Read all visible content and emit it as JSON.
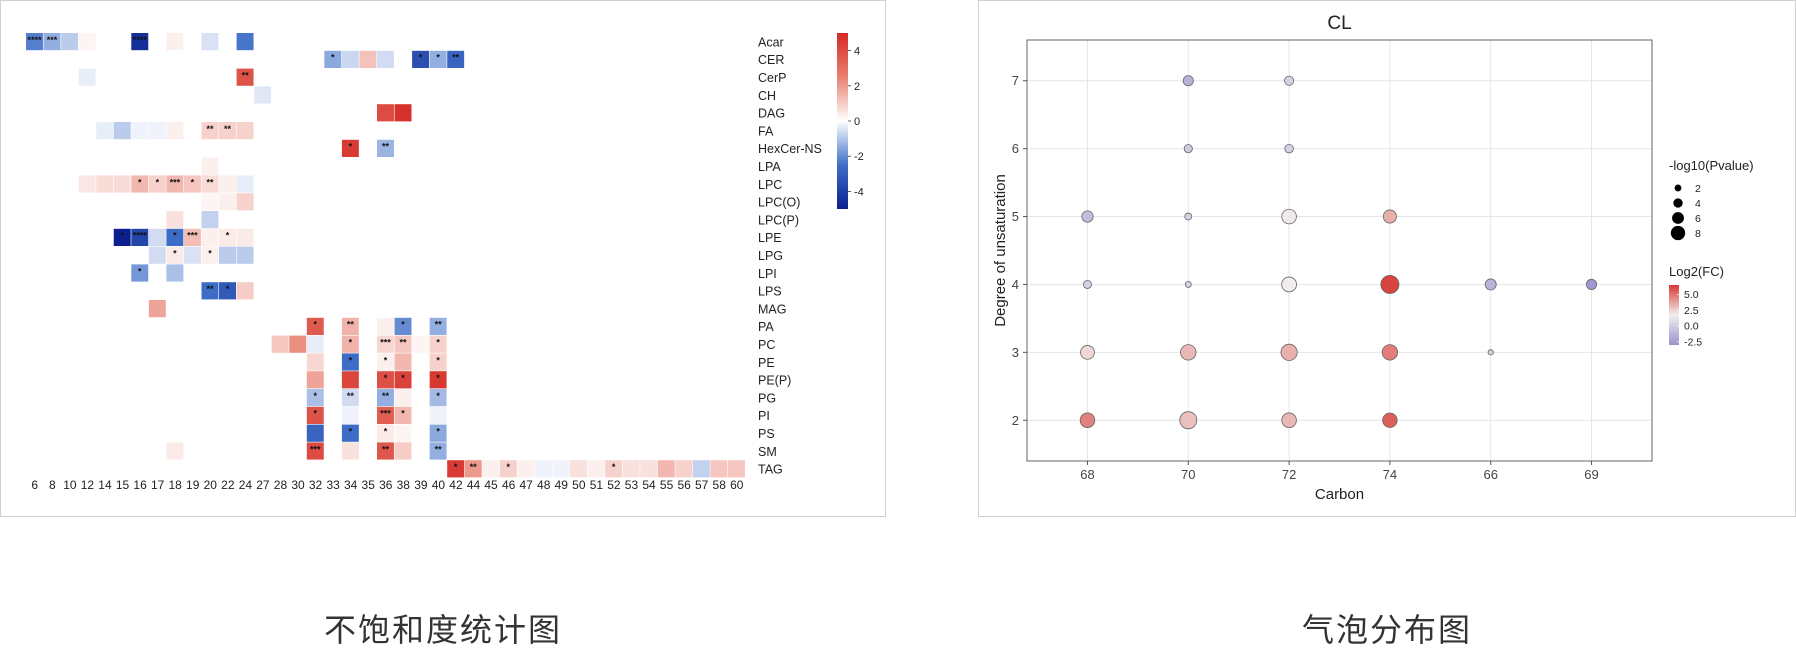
{
  "captions": {
    "left": "不饱和度统计图",
    "right": "气泡分布图"
  },
  "chart_data": [
    {
      "type": "heatmap",
      "columns": [
        "6",
        "8",
        "10",
        "12",
        "14",
        "15",
        "16",
        "17",
        "18",
        "19",
        "20",
        "22",
        "24",
        "27",
        "28",
        "30",
        "32",
        "33",
        "34",
        "35",
        "36",
        "38",
        "39",
        "40",
        "42",
        "44",
        "45",
        "46",
        "47",
        "48",
        "49",
        "50",
        "51",
        "52",
        "53",
        "54",
        "55",
        "56",
        "57",
        "58",
        "60"
      ],
      "rows": [
        "Acar",
        "CER",
        "CerP",
        "CH",
        "DAG",
        "FA",
        "HexCer-NS",
        "LPA",
        "LPC",
        "LPC(O)",
        "LPC(P)",
        "LPE",
        "LPG",
        "LPI",
        "LPS",
        "MAG",
        "PA",
        "PC",
        "PE",
        "PE(P)",
        "PG",
        "PI",
        "PS",
        "SM",
        "TAG"
      ],
      "colorbar": {
        "ticks": [
          4,
          2,
          0,
          -2,
          -4
        ],
        "range": [
          -5,
          5
        ],
        "colors": [
          "#0b1f8f",
          "#3f6fc8",
          "#ffffff",
          "#e88070",
          "#d42a24"
        ]
      },
      "cells": [
        {
          "row": "Acar",
          "col": "6",
          "value": -2.2,
          "label": "****"
        },
        {
          "row": "Acar",
          "col": "8",
          "value": -1.4,
          "label": "***"
        },
        {
          "row": "Acar",
          "col": "10",
          "value": -0.9,
          "label": ""
        },
        {
          "row": "Acar",
          "col": "12",
          "value": 0.2,
          "label": ""
        },
        {
          "row": "Acar",
          "col": "16",
          "value": -4.5,
          "label": "****"
        },
        {
          "row": "Acar",
          "col": "18",
          "value": 0.3,
          "label": ""
        },
        {
          "row": "Acar",
          "col": "20",
          "value": -0.5,
          "label": ""
        },
        {
          "row": "Acar",
          "col": "24",
          "value": -2.4,
          "label": ""
        },
        {
          "row": "CER",
          "col": "33",
          "value": -1.5,
          "label": "*"
        },
        {
          "row": "CER",
          "col": "34",
          "value": -0.7,
          "label": ""
        },
        {
          "row": "CER",
          "col": "35",
          "value": 1.2,
          "label": ""
        },
        {
          "row": "CER",
          "col": "36",
          "value": -0.6,
          "label": ""
        },
        {
          "row": "CER",
          "col": "39",
          "value": -3.5,
          "label": "*"
        },
        {
          "row": "CER",
          "col": "40",
          "value": -1.4,
          "label": "*"
        },
        {
          "row": "CER",
          "col": "42",
          "value": -2.8,
          "label": "**"
        },
        {
          "row": "CerP",
          "col": "12",
          "value": -0.3,
          "label": ""
        },
        {
          "row": "CerP",
          "col": "24",
          "value": 3.8,
          "label": "**"
        },
        {
          "row": "CH",
          "col": "27",
          "value": -0.4,
          "label": ""
        },
        {
          "row": "DAG",
          "col": "36",
          "value": 4.0,
          "label": ""
        },
        {
          "row": "DAG",
          "col": "38",
          "value": 4.8,
          "label": ""
        },
        {
          "row": "FA",
          "col": "14",
          "value": -0.3,
          "label": ""
        },
        {
          "row": "FA",
          "col": "15",
          "value": -0.9,
          "label": ""
        },
        {
          "row": "FA",
          "col": "16",
          "value": -0.2,
          "label": ""
        },
        {
          "row": "FA",
          "col": "17",
          "value": -0.2,
          "label": ""
        },
        {
          "row": "FA",
          "col": "18",
          "value": 0.3,
          "label": ""
        },
        {
          "row": "FA",
          "col": "20",
          "value": 0.9,
          "label": "**"
        },
        {
          "row": "FA",
          "col": "22",
          "value": 0.9,
          "label": "**"
        },
        {
          "row": "FA",
          "col": "24",
          "value": 0.9,
          "label": ""
        },
        {
          "row": "HexCer-NS",
          "col": "34",
          "value": 4.5,
          "label": "*"
        },
        {
          "row": "HexCer-NS",
          "col": "36",
          "value": -1.3,
          "label": "**"
        },
        {
          "row": "LPA",
          "col": "20",
          "value": 0.3,
          "label": ""
        },
        {
          "row": "LPC",
          "col": "12",
          "value": 0.5,
          "label": ""
        },
        {
          "row": "LPC",
          "col": "14",
          "value": 0.7,
          "label": ""
        },
        {
          "row": "LPC",
          "col": "15",
          "value": 0.7,
          "label": ""
        },
        {
          "row": "LPC",
          "col": "16",
          "value": 1.4,
          "label": "*"
        },
        {
          "row": "LPC",
          "col": "17",
          "value": 0.9,
          "label": "*"
        },
        {
          "row": "LPC",
          "col": "18",
          "value": 1.4,
          "label": "***"
        },
        {
          "row": "LPC",
          "col": "19",
          "value": 1.1,
          "label": "*"
        },
        {
          "row": "LPC",
          "col": "20",
          "value": 0.7,
          "label": "**"
        },
        {
          "row": "LPC",
          "col": "22",
          "value": 0.3,
          "label": ""
        },
        {
          "row": "LPC",
          "col": "24",
          "value": -0.3,
          "label": ""
        },
        {
          "row": "LPC(O)",
          "col": "20",
          "value": 0.2,
          "label": ""
        },
        {
          "row": "LPC(O)",
          "col": "22",
          "value": 0.3,
          "label": ""
        },
        {
          "row": "LPC(O)",
          "col": "24",
          "value": 0.9,
          "label": ""
        },
        {
          "row": "LPC(P)",
          "col": "18",
          "value": 0.6,
          "label": ""
        },
        {
          "row": "LPC(P)",
          "col": "20",
          "value": -0.8,
          "label": ""
        },
        {
          "row": "LPE",
          "col": "15",
          "value": -5.0,
          "label": "*"
        },
        {
          "row": "LPE",
          "col": "16",
          "value": -3.8,
          "label": "****"
        },
        {
          "row": "LPE",
          "col": "17",
          "value": -0.6,
          "label": ""
        },
        {
          "row": "LPE",
          "col": "18",
          "value": -2.6,
          "label": "*"
        },
        {
          "row": "LPE",
          "col": "19",
          "value": 1.3,
          "label": "***"
        },
        {
          "row": "LPE",
          "col": "20",
          "value": 0.3,
          "label": ""
        },
        {
          "row": "LPE",
          "col": "22",
          "value": 0.4,
          "label": "*"
        },
        {
          "row": "LPE",
          "col": "24",
          "value": 0.4,
          "label": ""
        },
        {
          "row": "LPG",
          "col": "17",
          "value": -0.6,
          "label": ""
        },
        {
          "row": "LPG",
          "col": "18",
          "value": 0.4,
          "label": "*"
        },
        {
          "row": "LPG",
          "col": "19",
          "value": -0.5,
          "label": ""
        },
        {
          "row": "LPG",
          "col": "20",
          "value": 0.3,
          "label": "*"
        },
        {
          "row": "LPG",
          "col": "22",
          "value": -0.9,
          "label": ""
        },
        {
          "row": "LPG",
          "col": "24",
          "value": -0.9,
          "label": ""
        },
        {
          "row": "LPI",
          "col": "16",
          "value": -1.8,
          "label": "*"
        },
        {
          "row": "LPI",
          "col": "18",
          "value": -1.1,
          "label": ""
        },
        {
          "row": "LPS",
          "col": "20",
          "value": -2.6,
          "label": "**"
        },
        {
          "row": "LPS",
          "col": "22",
          "value": -3.2,
          "label": "*"
        },
        {
          "row": "LPS",
          "col": "24",
          "value": 1.0,
          "label": ""
        },
        {
          "row": "MAG",
          "col": "17",
          "value": 1.8,
          "label": ""
        },
        {
          "row": "PA",
          "col": "32",
          "value": 3.6,
          "label": "*"
        },
        {
          "row": "PA",
          "col": "34",
          "value": 1.5,
          "label": "**"
        },
        {
          "row": "PA",
          "col": "36",
          "value": 0.3,
          "label": ""
        },
        {
          "row": "PA",
          "col": "38",
          "value": -2.0,
          "label": "*"
        },
        {
          "row": "PA",
          "col": "40",
          "value": -1.4,
          "label": "**"
        },
        {
          "row": "PC",
          "col": "28",
          "value": 1.1,
          "label": ""
        },
        {
          "row": "PC",
          "col": "30",
          "value": 2.2,
          "label": ""
        },
        {
          "row": "PC",
          "col": "32",
          "value": -0.3,
          "label": ""
        },
        {
          "row": "PC",
          "col": "34",
          "value": 1.5,
          "label": "*"
        },
        {
          "row": "PC",
          "col": "36",
          "value": 0.8,
          "label": "***"
        },
        {
          "row": "PC",
          "col": "38",
          "value": 1.1,
          "label": "**"
        },
        {
          "row": "PC",
          "col": "39",
          "value": 0.2,
          "label": ""
        },
        {
          "row": "PC",
          "col": "40",
          "value": 0.9,
          "label": "*"
        },
        {
          "row": "PE",
          "col": "32",
          "value": 0.8,
          "label": ""
        },
        {
          "row": "PE",
          "col": "34",
          "value": -2.6,
          "label": "*"
        },
        {
          "row": "PE",
          "col": "36",
          "value": 0.3,
          "label": "*"
        },
        {
          "row": "PE",
          "col": "38",
          "value": 1.4,
          "label": ""
        },
        {
          "row": "PE",
          "col": "40",
          "value": 0.9,
          "label": "*"
        },
        {
          "row": "PE(P)",
          "col": "32",
          "value": 1.8,
          "label": ""
        },
        {
          "row": "PE(P)",
          "col": "34",
          "value": 4.2,
          "label": ""
        },
        {
          "row": "PE(P)",
          "col": "36",
          "value": 3.9,
          "label": "*"
        },
        {
          "row": "PE(P)",
          "col": "38",
          "value": 4.3,
          "label": "*"
        },
        {
          "row": "PE(P)",
          "col": "40",
          "value": 4.6,
          "label": "*"
        },
        {
          "row": "PG",
          "col": "32",
          "value": -1.1,
          "label": "*"
        },
        {
          "row": "PG",
          "col": "34",
          "value": -0.6,
          "label": "**"
        },
        {
          "row": "PG",
          "col": "36",
          "value": -1.4,
          "label": "**"
        },
        {
          "row": "PG",
          "col": "38",
          "value": 0.3,
          "label": ""
        },
        {
          "row": "PG",
          "col": "40",
          "value": -1.2,
          "label": "*"
        },
        {
          "row": "PI",
          "col": "32",
          "value": 3.8,
          "label": "*"
        },
        {
          "row": "PI",
          "col": "34",
          "value": -0.2,
          "label": ""
        },
        {
          "row": "PI",
          "col": "36",
          "value": 3.5,
          "label": "***"
        },
        {
          "row": "PI",
          "col": "38",
          "value": 1.4,
          "label": "*"
        },
        {
          "row": "PI",
          "col": "40",
          "value": -0.2,
          "label": ""
        },
        {
          "row": "PS",
          "col": "32",
          "value": -2.8,
          "label": ""
        },
        {
          "row": "PS",
          "col": "34",
          "value": -2.6,
          "label": "*"
        },
        {
          "row": "PS",
          "col": "36",
          "value": 0.4,
          "label": "*"
        },
        {
          "row": "PS",
          "col": "38",
          "value": 0.2,
          "label": ""
        },
        {
          "row": "PS",
          "col": "40",
          "value": -1.5,
          "label": "*"
        },
        {
          "row": "SM",
          "col": "18",
          "value": 0.4,
          "label": ""
        },
        {
          "row": "SM",
          "col": "32",
          "value": 4.0,
          "label": "***"
        },
        {
          "row": "SM",
          "col": "34",
          "value": 0.6,
          "label": ""
        },
        {
          "row": "SM",
          "col": "36",
          "value": 3.7,
          "label": "**"
        },
        {
          "row": "SM",
          "col": "38",
          "value": 1.0,
          "label": ""
        },
        {
          "row": "SM",
          "col": "40",
          "value": -1.4,
          "label": "**"
        },
        {
          "row": "TAG",
          "col": "42",
          "value": 4.5,
          "label": "*"
        },
        {
          "row": "TAG",
          "col": "44",
          "value": 2.0,
          "label": "**"
        },
        {
          "row": "TAG",
          "col": "45",
          "value": 0.3,
          "label": ""
        },
        {
          "row": "TAG",
          "col": "46",
          "value": 0.9,
          "label": "*"
        },
        {
          "row": "TAG",
          "col": "47",
          "value": 0.3,
          "label": ""
        },
        {
          "row": "TAG",
          "col": "48",
          "value": -0.2,
          "label": ""
        },
        {
          "row": "TAG",
          "col": "49",
          "value": -0.2,
          "label": ""
        },
        {
          "row": "TAG",
          "col": "50",
          "value": 0.6,
          "label": ""
        },
        {
          "row": "TAG",
          "col": "51",
          "value": 0.3,
          "label": ""
        },
        {
          "row": "TAG",
          "col": "52",
          "value": 0.9,
          "label": "*"
        },
        {
          "row": "TAG",
          "col": "53",
          "value": 0.6,
          "label": ""
        },
        {
          "row": "TAG",
          "col": "54",
          "value": 0.6,
          "label": ""
        },
        {
          "row": "TAG",
          "col": "55",
          "value": 1.4,
          "label": ""
        },
        {
          "row": "TAG",
          "col": "56",
          "value": 0.9,
          "label": ""
        },
        {
          "row": "TAG",
          "col": "57",
          "value": -0.8,
          "label": ""
        },
        {
          "row": "TAG",
          "col": "58",
          "value": 1.1,
          "label": ""
        },
        {
          "row": "TAG",
          "col": "60",
          "value": 1.1,
          "label": ""
        }
      ]
    },
    {
      "type": "scatter",
      "title": "CL",
      "xlabel": "Carbon",
      "ylabel": "Degree of unsaturation",
      "categories": [
        "68",
        "70",
        "72",
        "74",
        "66",
        "69"
      ],
      "yticks": [
        2,
        3,
        4,
        5,
        6,
        7
      ],
      "ylim": [
        1.4,
        7.6
      ],
      "grid": true,
      "size_legend": {
        "title": "-log10(Pvalue)",
        "values": [
          2,
          4,
          6,
          8
        ]
      },
      "color_legend": {
        "title": "Log2(FC)",
        "ticks": [
          5.0,
          2.5,
          0.0,
          -2.5
        ],
        "labels": [
          "5.0",
          "2.5",
          "0.0",
          "-2.5"
        ],
        "range": [
          -3,
          6.5
        ],
        "colors": [
          "#9b91cf",
          "#f2eeee",
          "#d63a33"
        ]
      },
      "points": [
        {
          "x": "68",
          "y": 2,
          "size": 6.5,
          "fc": 4.6
        },
        {
          "x": "68",
          "y": 3,
          "size": 6.0,
          "fc": 2.3
        },
        {
          "x": "68",
          "y": 4,
          "size": 2.5,
          "fc": 0.2
        },
        {
          "x": "68",
          "y": 5,
          "size": 4.5,
          "fc": -0.8
        },
        {
          "x": "70",
          "y": 2,
          "size": 8.0,
          "fc": 3.0
        },
        {
          "x": "70",
          "y": 3,
          "size": 7.0,
          "fc": 3.2
        },
        {
          "x": "70",
          "y": 4,
          "size": 1.2,
          "fc": 0.3
        },
        {
          "x": "70",
          "y": 5,
          "size": 1.8,
          "fc": 0.3
        },
        {
          "x": "70",
          "y": 6,
          "size": 2.6,
          "fc": -0.2
        },
        {
          "x": "70",
          "y": 7,
          "size": 3.8,
          "fc": -1.3
        },
        {
          "x": "72",
          "y": 2,
          "size": 6.5,
          "fc": 3.2
        },
        {
          "x": "72",
          "y": 3,
          "size": 7.5,
          "fc": 3.4
        },
        {
          "x": "72",
          "y": 4,
          "size": 6.6,
          "fc": 1.7
        },
        {
          "x": "72",
          "y": 5,
          "size": 6.5,
          "fc": 1.5
        },
        {
          "x": "72",
          "y": 6,
          "size": 2.8,
          "fc": 0.2
        },
        {
          "x": "72",
          "y": 7,
          "size": 3.2,
          "fc": 0.2
        },
        {
          "x": "74",
          "y": 2,
          "size": 6.4,
          "fc": 5.5
        },
        {
          "x": "74",
          "y": 3,
          "size": 7.0,
          "fc": 4.7
        },
        {
          "x": "74",
          "y": 4,
          "size": 8.6,
          "fc": 6.2
        },
        {
          "x": "74",
          "y": 5,
          "size": 5.6,
          "fc": 3.4
        },
        {
          "x": "66",
          "y": 3,
          "size": 0.8,
          "fc": 0.1
        },
        {
          "x": "66",
          "y": 4,
          "size": 4.3,
          "fc": -1.3
        },
        {
          "x": "69",
          "y": 4,
          "size": 3.8,
          "fc": -2.7
        }
      ]
    }
  ]
}
